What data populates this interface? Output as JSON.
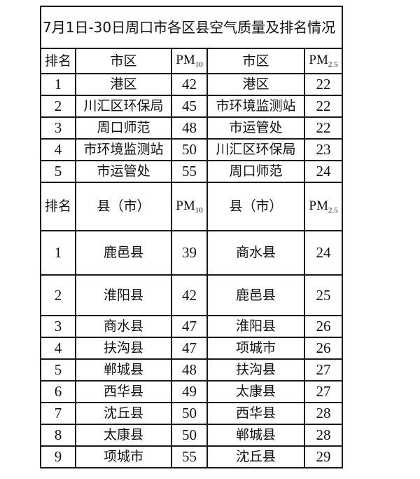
{
  "title": "7月1日-30日周口市各区县空气质量及排名情况",
  "district_header": {
    "rank": "排名",
    "area10": "市区",
    "pm10": "PM",
    "pm10_sub": "10",
    "area25": "市区",
    "pm25": "PM",
    "pm25_sub": "2.5"
  },
  "district_rows": [
    {
      "rank": "1",
      "area10": "港区",
      "pm10": "42",
      "area25": "港区",
      "pm25": "22"
    },
    {
      "rank": "2",
      "area10": "川汇区环保局",
      "pm10": "45",
      "area25": "市环境监测站",
      "pm25": "22"
    },
    {
      "rank": "3",
      "area10": "周口师范",
      "pm10": "48",
      "area25": "市运管处",
      "pm25": "22"
    },
    {
      "rank": "4",
      "area10": "市环境监测站",
      "pm10": "50",
      "area25": "川汇区环保局",
      "pm25": "23"
    },
    {
      "rank": "5",
      "area10": "市运管处",
      "pm10": "55",
      "area25": "周口师范",
      "pm25": "24"
    }
  ],
  "county_header": {
    "rank": "排名",
    "area10": "县（市）",
    "pm10": "PM",
    "pm10_sub": "10",
    "area25": "县（市）",
    "pm25": "PM",
    "pm25_sub": "2.5"
  },
  "county_rows": [
    {
      "rank": "1",
      "area10": "鹿邑县",
      "pm10": "39",
      "area25": "商水县",
      "pm25": "24"
    },
    {
      "rank": "2",
      "area10": "淮阳县",
      "pm10": "42",
      "area25": "鹿邑县",
      "pm25": "25"
    },
    {
      "rank": "3",
      "area10": "商水县",
      "pm10": "47",
      "area25": "淮阳县",
      "pm25": "26"
    },
    {
      "rank": "4",
      "area10": "扶沟县",
      "pm10": "47",
      "area25": "项城市",
      "pm25": "26"
    },
    {
      "rank": "5",
      "area10": "郸城县",
      "pm10": "48",
      "area25": "扶沟县",
      "pm25": "27"
    },
    {
      "rank": "6",
      "area10": "西华县",
      "pm10": "49",
      "area25": "太康县",
      "pm25": "27"
    },
    {
      "rank": "7",
      "area10": "沈丘县",
      "pm10": "50",
      "area25": "西华县",
      "pm25": "28"
    },
    {
      "rank": "8",
      "area10": "太康县",
      "pm10": "50",
      "area25": "郸城县",
      "pm25": "28"
    },
    {
      "rank": "9",
      "area10": "项城市",
      "pm10": "55",
      "area25": "沈丘县",
      "pm25": "29"
    }
  ]
}
